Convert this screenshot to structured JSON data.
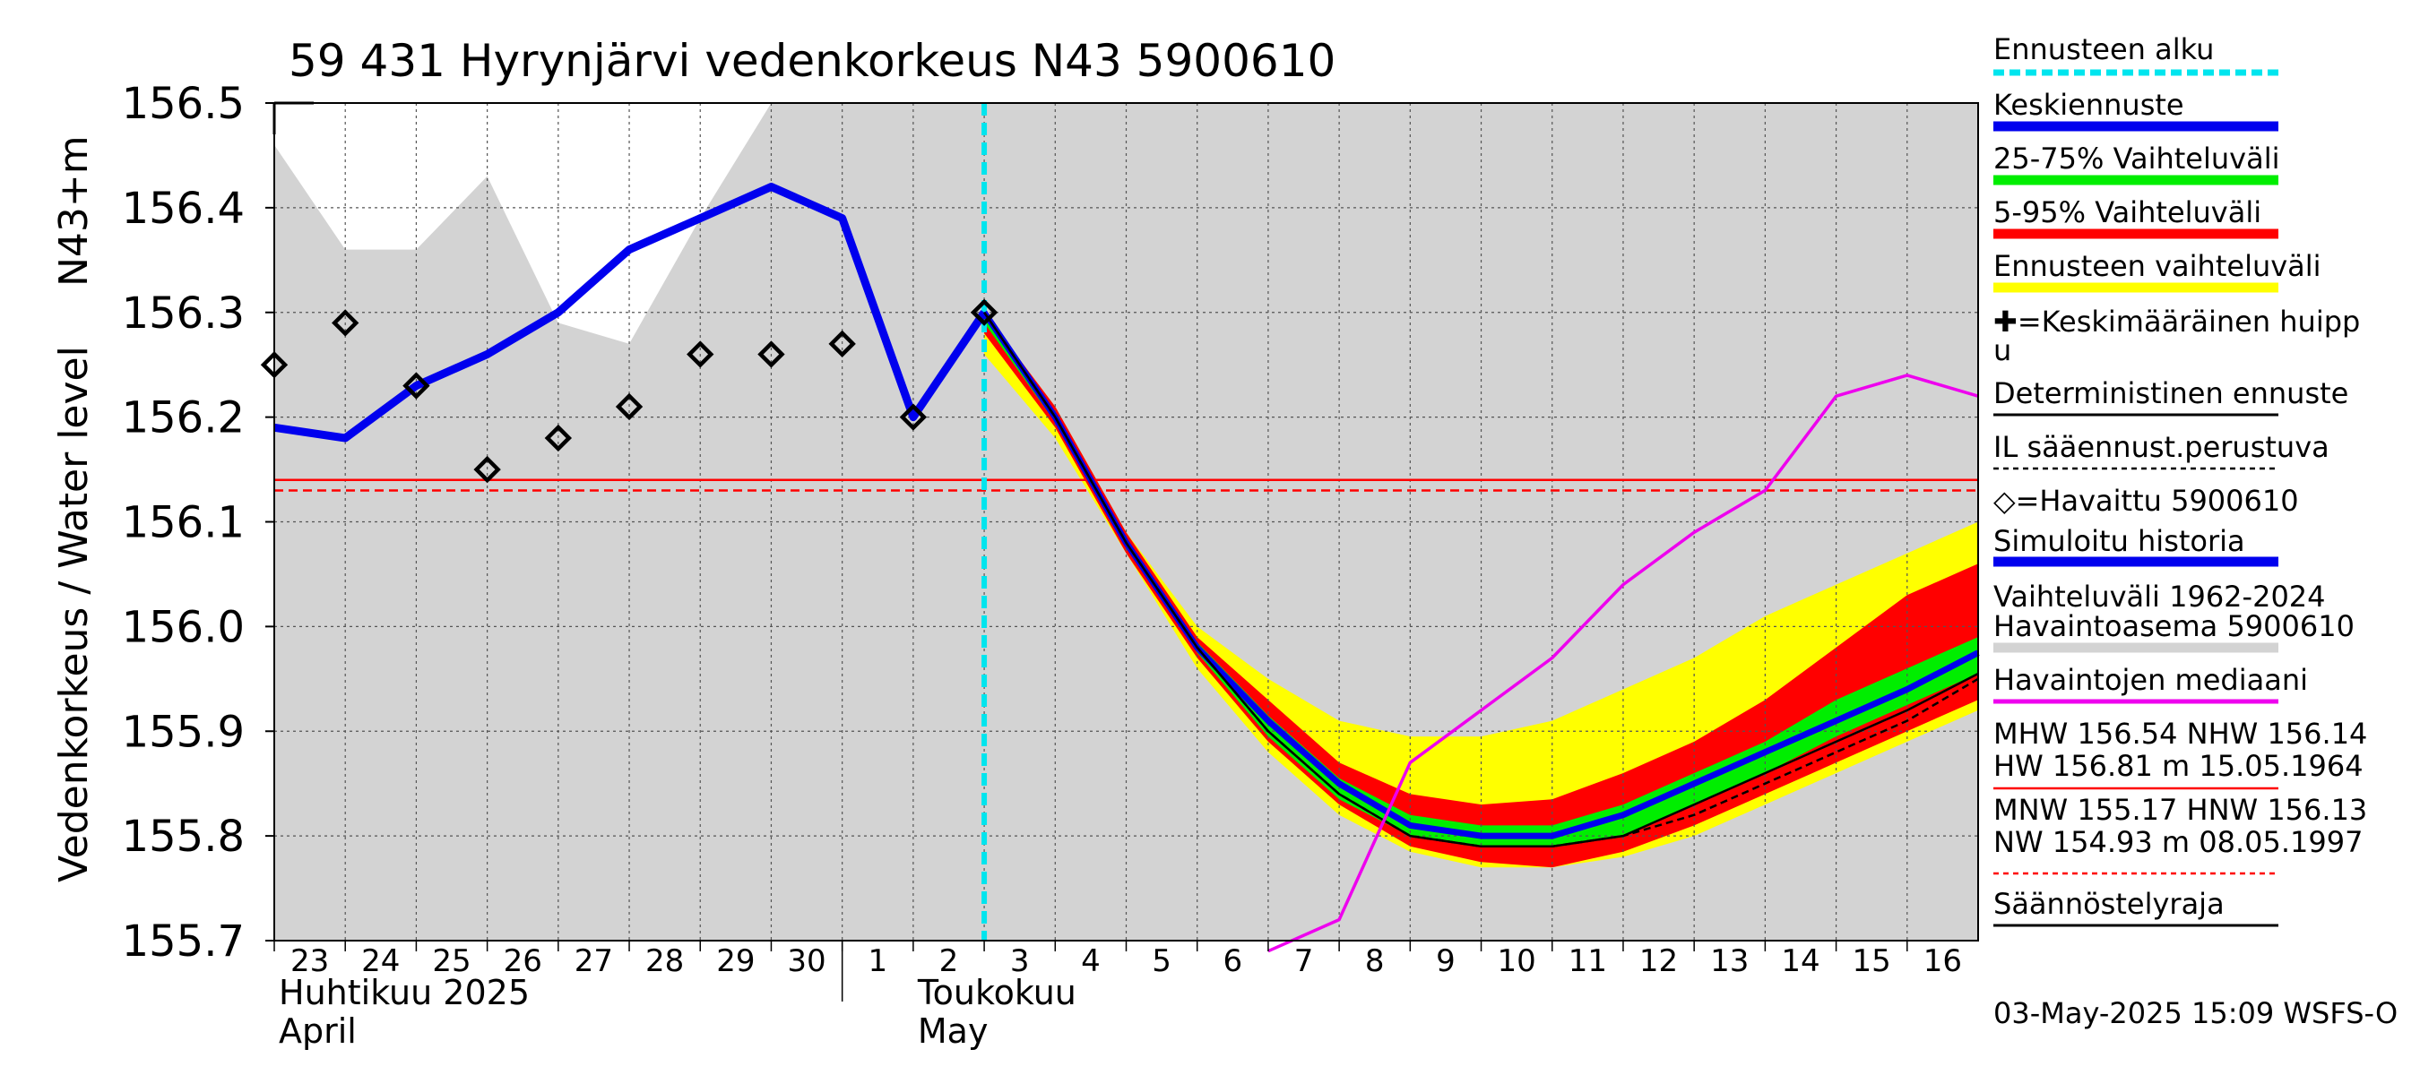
{
  "chart_data": {
    "type": "line",
    "title": "59 431 Hyrynjärvi vedenkorkeus N43 5900610",
    "ylabel": "Vedenkorkeus / Water level",
    "ylabel_unit": "N43+m",
    "ylim": [
      155.7,
      156.5
    ],
    "yticks": [
      "155.7",
      "155.8",
      "155.9",
      "156.0",
      "156.1",
      "156.2",
      "156.3",
      "156.4",
      "156.5"
    ],
    "x_range_days": [
      0,
      24
    ],
    "day_labels": [
      "23",
      "24",
      "25",
      "26",
      "27",
      "28",
      "29",
      "30",
      "1",
      "2",
      "3",
      "4",
      "5",
      "6",
      "7",
      "8",
      "9",
      "10",
      "11",
      "12",
      "13",
      "14",
      "15",
      "16"
    ],
    "month_labels": [
      {
        "fi": "Huhtikuu  2025",
        "en": "April",
        "day_index": 0
      },
      {
        "fi": "Toukokuu",
        "en": "May",
        "day_index": 9
      }
    ],
    "forecast_start_day": 10.0,
    "mean_peak_levels": {
      "MHW": 156.54,
      "NHW": 156.14,
      "MNW": 155.17,
      "HNW": 156.13
    },
    "series": [
      {
        "name": "Simuloitu historia",
        "color": "#0000ee",
        "x": [
          0,
          1,
          2,
          3,
          4,
          5,
          6,
          7,
          8,
          9,
          10
        ],
        "y": [
          156.19,
          156.18,
          156.23,
          156.26,
          156.3,
          156.36,
          156.39,
          156.42,
          156.39,
          156.2,
          156.3
        ]
      },
      {
        "name": "Keskiennuste",
        "color": "#0000ee",
        "x": [
          10,
          11,
          12,
          13,
          14,
          15,
          16,
          17,
          18,
          19,
          20,
          21,
          22,
          23,
          24
        ],
        "y": [
          156.3,
          156.2,
          156.08,
          155.98,
          155.91,
          155.85,
          155.81,
          155.8,
          155.8,
          155.82,
          155.85,
          155.88,
          155.91,
          155.94,
          155.975
        ]
      },
      {
        "name": "Deterministinen ennuste",
        "color": "#000000",
        "x": [
          10,
          11,
          12,
          13,
          14,
          15,
          16,
          17,
          18,
          19,
          20,
          21,
          22,
          23,
          24
        ],
        "y": [
          156.3,
          156.2,
          156.08,
          155.98,
          155.9,
          155.84,
          155.8,
          155.79,
          155.79,
          155.8,
          155.83,
          155.86,
          155.89,
          155.92,
          155.955
        ]
      },
      {
        "name": "IL sääennust.perustuva",
        "color": "#000000",
        "dash": true,
        "x": [
          10,
          11,
          12,
          13,
          14,
          15,
          16,
          17,
          18,
          19,
          20,
          21,
          22,
          23,
          24
        ],
        "y": [
          156.3,
          156.2,
          156.08,
          155.98,
          155.9,
          155.84,
          155.8,
          155.79,
          155.79,
          155.8,
          155.82,
          155.85,
          155.88,
          155.91,
          155.95
        ]
      },
      {
        "name": "Havaintojen mediaani",
        "color": "#ee00ee",
        "x": [
          14,
          15,
          16,
          17,
          18,
          19,
          20,
          21,
          22,
          23,
          24
        ],
        "y": [
          155.69,
          155.72,
          155.87,
          155.92,
          155.97,
          156.04,
          156.09,
          156.13,
          156.22,
          156.24,
          156.22
        ]
      }
    ],
    "bands": [
      {
        "name": "Vaihteluväli 1962-2024 Havaintoasema 5900610",
        "color": "#d3d3d3",
        "x": [
          0,
          1,
          2,
          3,
          4,
          5,
          6,
          7,
          24
        ],
        "lower": [
          155.7,
          155.7,
          155.7,
          155.7,
          155.7,
          155.7,
          155.7,
          155.7,
          155.7
        ],
        "upper": [
          156.46,
          156.36,
          156.36,
          156.43,
          156.29,
          156.27,
          156.39,
          156.5,
          156.5
        ]
      },
      {
        "name": "Ennusteen vaihteluväli",
        "color": "#ffff00",
        "x": [
          10,
          11,
          12,
          13,
          14,
          15,
          16,
          17,
          18,
          19,
          20,
          21,
          22,
          23,
          24
        ],
        "lower": [
          156.26,
          156.18,
          156.07,
          155.96,
          155.88,
          155.82,
          155.785,
          155.77,
          155.77,
          155.78,
          155.8,
          155.83,
          155.86,
          155.89,
          155.92
        ],
        "upper": [
          156.3,
          156.21,
          156.09,
          156.0,
          155.95,
          155.91,
          155.895,
          155.895,
          155.91,
          155.94,
          155.97,
          156.01,
          156.04,
          156.07,
          156.1
        ]
      },
      {
        "name": "5-95% Vaihteluväli",
        "color": "#ff0000",
        "x": [
          10,
          11,
          12,
          13,
          14,
          15,
          16,
          17,
          18,
          19,
          20,
          21,
          22,
          23,
          24
        ],
        "lower": [
          156.28,
          156.19,
          156.07,
          155.97,
          155.89,
          155.83,
          155.79,
          155.775,
          155.77,
          155.785,
          155.81,
          155.84,
          155.87,
          155.9,
          155.93
        ],
        "upper": [
          156.3,
          156.21,
          156.09,
          155.99,
          155.93,
          155.87,
          155.84,
          155.83,
          155.835,
          155.86,
          155.89,
          155.93,
          155.98,
          156.03,
          156.06
        ]
      },
      {
        "name": "25-75% Vaihteluväli",
        "color": "#00ee00",
        "x": [
          10,
          11,
          12,
          13,
          14,
          15,
          16,
          17,
          18,
          19,
          20,
          21,
          22,
          23,
          24
        ],
        "lower": [
          156.29,
          156.195,
          156.075,
          155.975,
          155.895,
          155.835,
          155.8,
          155.79,
          155.79,
          155.8,
          155.83,
          155.86,
          155.895,
          155.925,
          155.955
        ],
        "upper": [
          156.3,
          156.205,
          156.085,
          155.985,
          155.915,
          155.855,
          155.82,
          155.81,
          155.81,
          155.83,
          155.86,
          155.89,
          155.93,
          155.96,
          155.99
        ]
      }
    ],
    "observed": {
      "name": "Havaittu 5900610",
      "x": [
        0,
        1,
        2,
        3,
        4,
        5,
        6,
        7,
        8,
        9,
        10
      ],
      "y": [
        156.25,
        156.29,
        156.23,
        156.15,
        156.18,
        156.21,
        156.26,
        156.26,
        156.27,
        156.2,
        156.3
      ]
    },
    "hlines": [
      {
        "name": "NHW",
        "value": 156.14,
        "color": "#ff0000",
        "dash": false
      },
      {
        "name": "HNW",
        "value": 156.13,
        "color": "#ff0000",
        "dash": true
      }
    ],
    "legend": [
      {
        "label": "Ennusteen alku",
        "kind": "dash-cyan"
      },
      {
        "label": "Keskiennuste",
        "kind": "blue"
      },
      {
        "label": "25-75% Vaihteluväli",
        "kind": "green"
      },
      {
        "label": "5-95% Vaihteluväli",
        "kind": "red"
      },
      {
        "label": "Ennusteen vaihteluväli",
        "kind": "yellow"
      },
      {
        "label": "✚=Keskimääräinen huipp",
        "label2": "u",
        "kind": "none"
      },
      {
        "label": "Deterministinen ennuste",
        "kind": "thin-black"
      },
      {
        "label": "IL sääennust.perustuva",
        "kind": "dashed-black"
      },
      {
        "label": "◇=Havaittu 5900610",
        "kind": "none"
      },
      {
        "label": "Simuloitu historia",
        "kind": "blue"
      },
      {
        "label": "Vaihteluväli 1962-2024",
        "label2": " Havaintoasema 5900610",
        "kind": "gray"
      },
      {
        "label": "Havaintojen mediaani",
        "kind": "magenta"
      },
      {
        "label": "MHW 156.54 NHW 156.14",
        "label2": "HW 156.81 m 15.05.1964",
        "kind": "thin-red"
      },
      {
        "label": "MNW 155.17 HNW 156.13",
        "label2": "NW 154.93 m 08.05.1997",
        "kind": "dashed-red"
      },
      {
        "label": "Säännöstelyraja",
        "kind": "thin-black"
      }
    ],
    "footer": "03-May-2025 15:09 WSFS-O"
  }
}
